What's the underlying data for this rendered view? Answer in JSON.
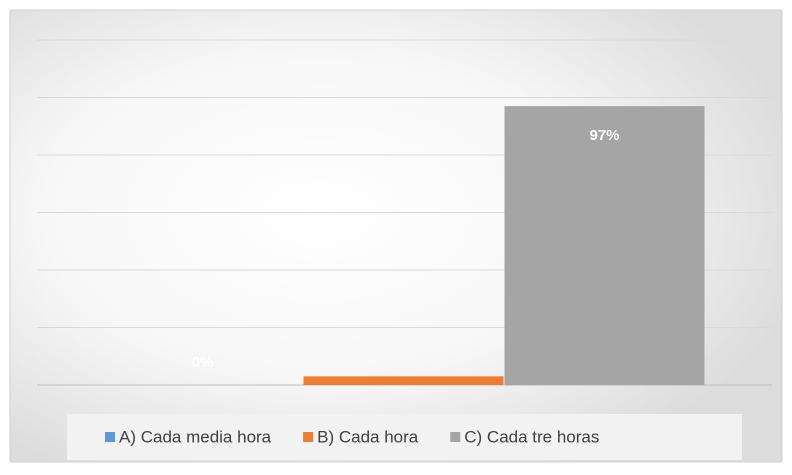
{
  "chart_data": {
    "type": "bar",
    "series": [
      {
        "name": "A) Cada media hora",
        "color": "#5b9bd5",
        "values": [
          0
        ],
        "value_labels": [
          "0%"
        ]
      },
      {
        "name": "B) Cada hora",
        "color": "#ed7d31",
        "values": [
          3
        ],
        "value_labels": [
          null
        ]
      },
      {
        "name": "C) Cada tre horas",
        "color": "#a5a5a5",
        "values": [
          97
        ],
        "value_labels": [
          "97%"
        ]
      }
    ],
    "ylim": [
      0,
      120
    ],
    "yticks": [
      0,
      20,
      40,
      60,
      80,
      100,
      120
    ],
    "grid": true,
    "legend": "bottom"
  }
}
